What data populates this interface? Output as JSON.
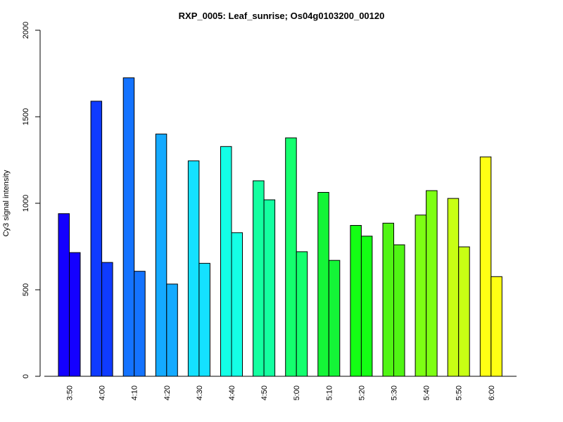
{
  "chart_data": {
    "type": "bar",
    "title": "RXP_0005: Leaf_sunrise; Os04g0103200_00120",
    "xlabel": "",
    "ylabel": "Cy3 signal intensity",
    "ylim": [
      0,
      2000
    ],
    "yticks": [
      0,
      500,
      1000,
      1500,
      2000
    ],
    "categories": [
      "3:50",
      "4:00",
      "4:10",
      "4:20",
      "4:30",
      "4:40",
      "4:50",
      "5:00",
      "5:10",
      "5:20",
      "5:30",
      "5:40",
      "5:50",
      "6:00"
    ],
    "series": [
      {
        "values": [
          940,
          1590,
          1725,
          1400,
          1245,
          1328,
          1130,
          1378,
          1063,
          872,
          885,
          932,
          1028,
          1268
        ]
      },
      {
        "values": [
          715,
          658,
          607,
          533,
          653,
          830,
          1020,
          720,
          670,
          810,
          760,
          1073,
          748,
          576
        ]
      }
    ],
    "colors": [
      "#1400FF",
      "#0F3BFF",
      "#1473FF",
      "#14AAFF",
      "#14E1FF",
      "#14FFE6",
      "#14FFA0",
      "#14FF6E",
      "#14F537",
      "#14FF14",
      "#50F514",
      "#7DFF14",
      "#C8FF14",
      "#FFFF14"
    ],
    "grid": false,
    "legend": "none"
  }
}
